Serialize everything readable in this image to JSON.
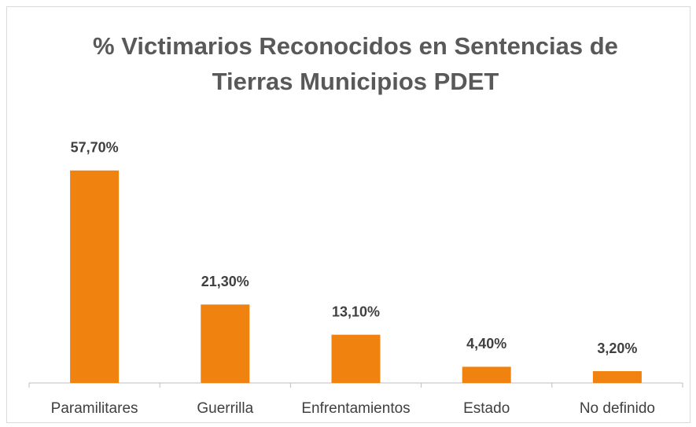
{
  "chart_data": {
    "type": "bar",
    "title": "% Victimarios Reconocidos en Sentencias de Tierras Municipios PDET",
    "categories": [
      "Paramilitares",
      "Guerrilla",
      "Enfrentamientos",
      "Estado",
      "No definido"
    ],
    "values": [
      57.7,
      21.3,
      13.1,
      4.4,
      3.2
    ],
    "value_labels": [
      "57,70%",
      "21,30%",
      "13,10%",
      "4,40%",
      "3,20%"
    ],
    "color": "#f0820f",
    "ylim": [
      0,
      60
    ]
  }
}
